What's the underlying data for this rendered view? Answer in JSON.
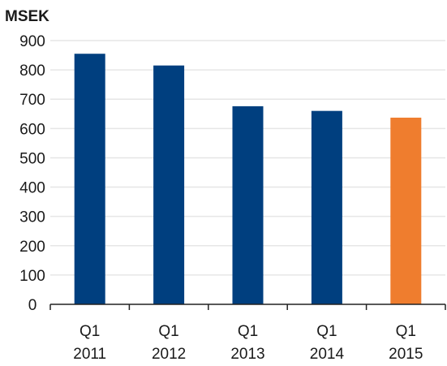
{
  "chart_data": {
    "type": "bar",
    "title": "",
    "unit_label": "MSEK",
    "xlabel": "",
    "ylabel": "",
    "ylim": [
      0,
      900
    ],
    "yticks": [
      "0",
      "100",
      "200",
      "300",
      "400",
      "500",
      "600",
      "700",
      "800",
      "900"
    ],
    "grid": true,
    "categories": [
      {
        "line1": "Q1",
        "line2": "2011"
      },
      {
        "line1": "Q1",
        "line2": "2012"
      },
      {
        "line1": "Q1",
        "line2": "2013"
      },
      {
        "line1": "Q1",
        "line2": "2014"
      },
      {
        "line1": "Q1",
        "line2": "2015"
      }
    ],
    "values": [
      855,
      815,
      676,
      660,
      637
    ],
    "colors": [
      "#003f7f",
      "#003f7f",
      "#003f7f",
      "#003f7f",
      "#ef7d2e"
    ]
  }
}
